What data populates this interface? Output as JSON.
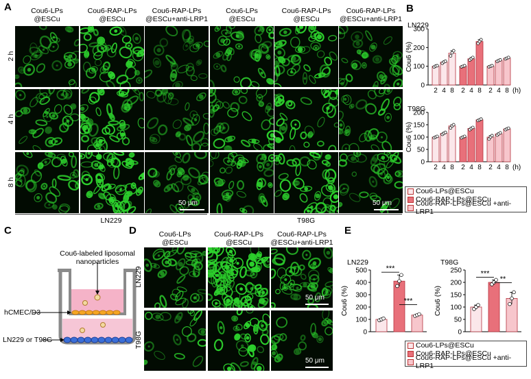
{
  "panels": {
    "A": "A",
    "B": "B",
    "C": "C",
    "D": "D",
    "E": "E"
  },
  "colors": {
    "bar_lps": "#fbe7ea",
    "bar_rap": "#e8707a",
    "bar_anti": "#f7c6cc",
    "bar_edge": "#b5323e",
    "cell_green": "#2ccf2c",
    "micro_bg": "#020b02"
  },
  "panel_a": {
    "col_heads": [
      {
        "l1": "Cou6-LPs",
        "l2": "@ESCu"
      },
      {
        "l1": "Cou6-RAP-LPs",
        "l2": "@ESCu"
      },
      {
        "l1": "Cou6-RAP-LPs",
        "l2": "@ESCu+anti-LRP1"
      },
      {
        "l1": "Cou6-LPs",
        "l2": "@ESCu"
      },
      {
        "l1": "Cou6-RAP-LPs",
        "l2": "@ESCu"
      },
      {
        "l1": "Cou6-RAP-LPs",
        "l2": "@ESCu+anti-LRP1"
      }
    ],
    "rows": [
      "2 h",
      "4 h",
      "8 h"
    ],
    "scale_label": "50 μm",
    "groups": [
      "LN229",
      "T98G"
    ]
  },
  "panel_c": {
    "particle_label_1": "Cou6-labeled liposomal",
    "particle_label_2": "nanoparticles",
    "bbb_label": "hCMEC/D3",
    "tumor_label": "LN229 or T98G"
  },
  "panel_d": {
    "col_heads": [
      {
        "l1": "Cou6-LPs",
        "l2": "@ESCu"
      },
      {
        "l1": "Cou6-RAP-LPs",
        "l2": "@ESCu"
      },
      {
        "l1": "Cou6-RAP-LPs",
        "l2": "@ESCu+anti-LRP1"
      }
    ],
    "rows": [
      "LN229",
      "T98G"
    ],
    "scale_label": "50 μm"
  },
  "chart_data": [
    {
      "type": "bar",
      "panel": "B",
      "title": "LN229",
      "ylabel": "Cou6 (%)",
      "ylim": [
        0,
        300
      ],
      "yticks": [
        0,
        100,
        200,
        300
      ],
      "x_unit": "(h)",
      "categories": [
        "2",
        "4",
        "8"
      ],
      "series": [
        {
          "name": "Cou6-LPs@ESCu",
          "values": [
            100,
            122,
            170
          ],
          "points": [
            [
              96,
              101,
              103
            ],
            [
              116,
              123,
              127
            ],
            [
              155,
              172,
              183
            ]
          ]
        },
        {
          "name": "Cou6-RAP-LPs@ESCu",
          "values": [
            100,
            140,
            232
          ],
          "points": [
            [
              97,
              100,
              103
            ],
            [
              133,
              140,
              147
            ],
            [
              222,
              232,
              242
            ]
          ]
        },
        {
          "name": "Cou6-RAP-LPs@ESCu +anti-LRP1",
          "values": [
            100,
            130,
            143
          ],
          "points": [
            [
              97,
              100,
              103
            ],
            [
              126,
              131,
              134
            ],
            [
              139,
              143,
              147
            ]
          ]
        }
      ]
    },
    {
      "type": "bar",
      "panel": "B",
      "title": "T98G",
      "ylabel": "Cou6 (%)",
      "ylim": [
        0,
        200
      ],
      "yticks": [
        0,
        50,
        100,
        150,
        200
      ],
      "x_unit": "(h)",
      "categories": [
        "2",
        "4",
        "8"
      ],
      "series": [
        {
          "name": "Cou6-LPs@ESCu",
          "values": [
            100,
            115,
            145
          ],
          "points": [
            [
              97,
              100,
              103
            ],
            [
              111,
              115,
              119
            ],
            [
              137,
              145,
              150
            ]
          ]
        },
        {
          "name": "Cou6-RAP-LPs@ESCu",
          "values": [
            100,
            135,
            170
          ],
          "points": [
            [
              97,
              100,
              103
            ],
            [
              130,
              135,
              139
            ],
            [
              167,
              170,
              173
            ]
          ]
        },
        {
          "name": "Cou6-RAP-LPs@ESCu +anti-LRP1",
          "values": [
            100,
            113,
            133
          ],
          "points": [
            [
              92,
              100,
              106
            ],
            [
              108,
              113,
              117
            ],
            [
              130,
              133,
              136
            ]
          ]
        }
      ]
    },
    {
      "type": "bar",
      "panel": "E",
      "title": "LN229",
      "ylabel": "Cou6 (%)",
      "ylim": [
        0,
        500
      ],
      "yticks": [
        0,
        100,
        200,
        300,
        400,
        500
      ],
      "categories": [
        "Cou6-LPs@ESCu",
        "Cou6-RAP-LPs@ESCu",
        "Cou6-RAP-LPs@ESCu +anti-LRP1"
      ],
      "values": [
        100,
        410,
        135
      ],
      "points": [
        [
          93,
          100,
          107
        ],
        [
          370,
          410,
          460
        ],
        [
          128,
          135,
          142
        ]
      ],
      "significance": [
        {
          "from": 0,
          "to": 1,
          "label": "***"
        },
        {
          "from": 1,
          "to": 2,
          "label": "***"
        }
      ]
    },
    {
      "type": "bar",
      "panel": "E",
      "title": "T98G",
      "ylabel": "Cou6 (%)",
      "ylim": [
        0,
        250
      ],
      "yticks": [
        0,
        50,
        100,
        150,
        200,
        250
      ],
      "categories": [
        "Cou6-LPs@ESCu",
        "Cou6-RAP-LPs@ESCu",
        "Cou6-RAP-LPs@ESCu +anti-LRP1"
      ],
      "values": [
        100,
        200,
        135
      ],
      "points": [
        [
          92,
          100,
          108
        ],
        [
          192,
          200,
          210
        ],
        [
          112,
          135,
          160
        ]
      ],
      "significance": [
        {
          "from": 0,
          "to": 1,
          "label": "***"
        },
        {
          "from": 1,
          "to": 2,
          "label": "**"
        }
      ]
    }
  ],
  "legend_items": [
    "Cou6-LPs@ESCu",
    "Cou6-RAP-LPs@ESCu",
    "Cou6-RAP-LPs@ESCu +anti-LRP1"
  ]
}
